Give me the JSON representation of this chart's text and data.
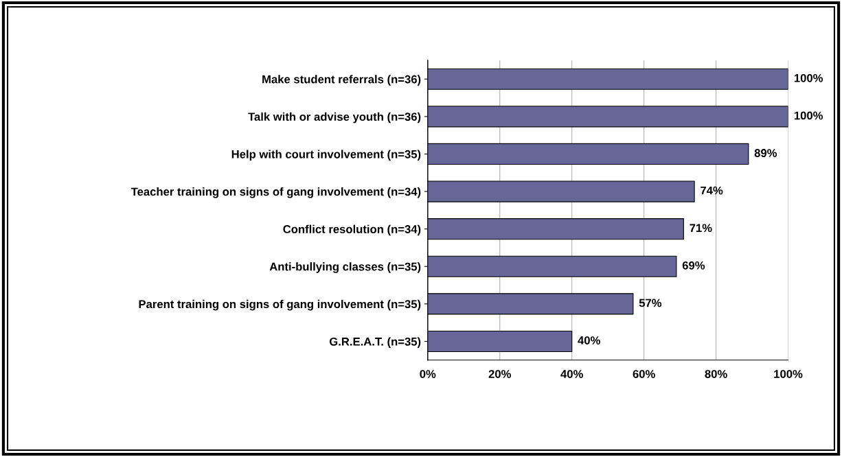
{
  "chart_data": {
    "type": "bar",
    "orientation": "horizontal",
    "categories": [
      "Make student referrals (n=36)",
      "Talk with or advise youth (n=36)",
      "Help with court involvement (n=35)",
      "Teacher training on signs of gang involvement (n=34)",
      "Conflict resolution (n=34)",
      "Anti-bullying classes (n=35)",
      "Parent training on signs of gang involvement (n=35)",
      "G.R.E.A.T. (n=35)"
    ],
    "values": [
      100,
      100,
      89,
      74,
      71,
      69,
      57,
      40
    ],
    "value_labels": [
      "100%",
      "100%",
      "89%",
      "74%",
      "71%",
      "69%",
      "57%",
      "40%"
    ],
    "color": "#666699",
    "xlim": [
      0,
      100
    ],
    "xticks": [
      {
        "value": 0,
        "label": "0%"
      },
      {
        "value": 20,
        "label": "20%"
      },
      {
        "value": 40,
        "label": "40%"
      },
      {
        "value": 60,
        "label": "60%"
      },
      {
        "value": 80,
        "label": "80%"
      },
      {
        "value": 100,
        "label": "100%"
      }
    ],
    "grid": "x",
    "legend": false
  }
}
